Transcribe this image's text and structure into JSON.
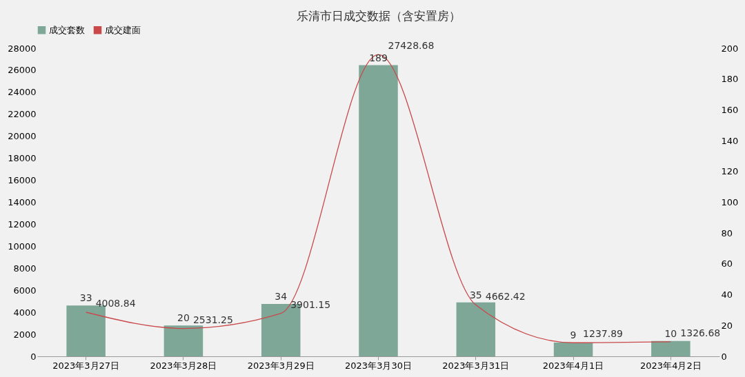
{
  "chart_data": {
    "type": "bar",
    "title": "乐清市日成交数据（含安置房）",
    "categories": [
      "2023年3月27日",
      "2023年3月28日",
      "2023年3月29日",
      "2023年3月30日",
      "2023年3月31日",
      "2023年4月1日",
      "2023年4月2日"
    ],
    "series": [
      {
        "name": "成交套数",
        "axis": "y2",
        "color": "#7fa798",
        "values": [
          33,
          20,
          34,
          189,
          35,
          9,
          10
        ]
      },
      {
        "name": "成交建面",
        "type": "line",
        "axis": "y",
        "color": "#c9484a",
        "values": [
          4008.84,
          2531.25,
          3901.15,
          27428.68,
          4662.42,
          1237.89,
          1326.68
        ]
      }
    ],
    "ylim": [
      0,
      28000
    ],
    "yticks": [
      0,
      2000,
      4000,
      6000,
      8000,
      10000,
      12000,
      14000,
      16000,
      18000,
      20000,
      22000,
      24000,
      26000,
      28000
    ],
    "y2lim": [
      0,
      200
    ],
    "y2ticks": [
      0,
      20,
      40,
      60,
      80,
      100,
      120,
      140,
      160,
      180,
      200
    ],
    "data_labels": true,
    "legend": "top",
    "grid": false,
    "marker": "none",
    "line_style": "solid"
  }
}
